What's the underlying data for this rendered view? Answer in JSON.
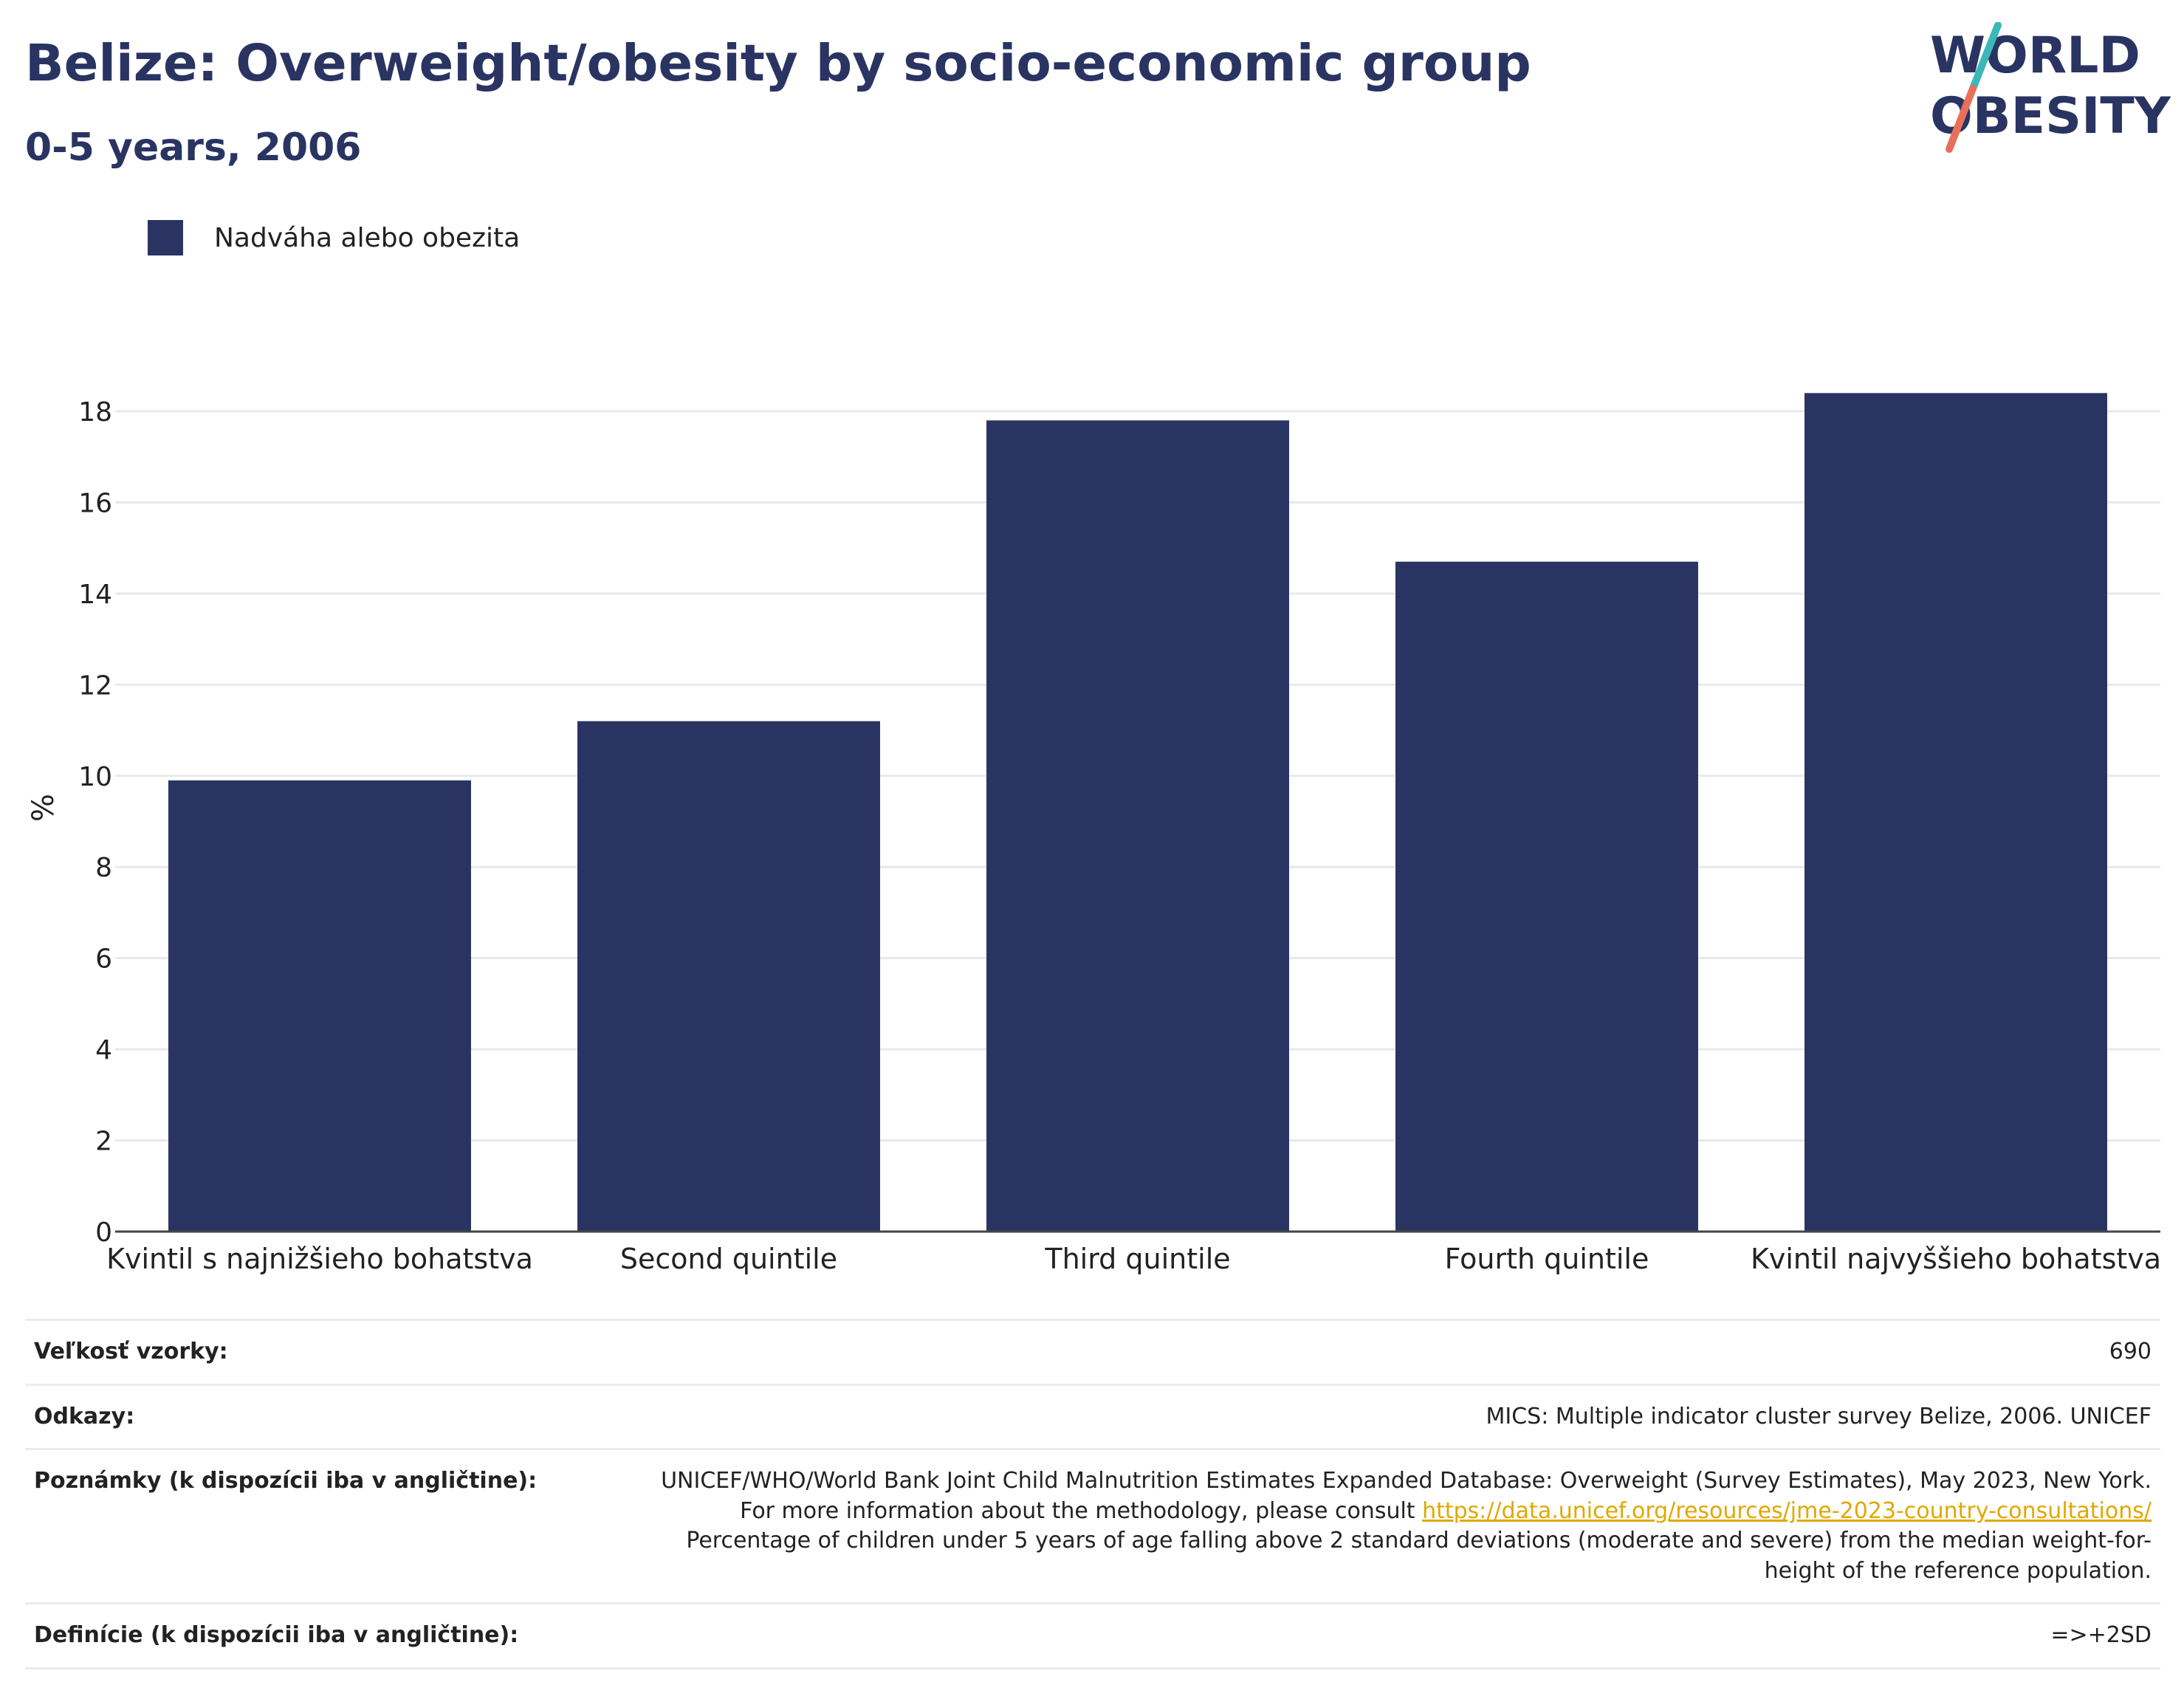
{
  "header": {
    "title": "Belize: Overweight/obesity by socio-economic group",
    "subtitle": "0-5 years, 2006"
  },
  "logo": {
    "line1": "WORLD",
    "line2": "OBESITY"
  },
  "colors": {
    "bar": "#2a3462",
    "text": "#2a3462",
    "logo_teal": "#3bb7b8",
    "logo_coral": "#e8705a",
    "link": "#e0a800"
  },
  "chart_data": {
    "type": "bar",
    "categories": [
      "Kvintil s najnižšieho bohatstva",
      "Second quintile",
      "Third quintile",
      "Fourth quintile",
      "Kvintil najvyššieho bohatstva"
    ],
    "series": [
      {
        "name": "Nadváha alebo obezita",
        "values": [
          9.9,
          11.2,
          17.8,
          14.7,
          18.4
        ]
      }
    ],
    "ylabel": "%",
    "xlabel": "",
    "ylim": [
      0,
      18.6
    ],
    "yticks": [
      0,
      2,
      4,
      6,
      8,
      10,
      12,
      14,
      16,
      18
    ],
    "grid": true,
    "legend": "top-left"
  },
  "info": {
    "sample_label": "Veľkosť vzorky:",
    "sample_value": "690",
    "refs_label": "Odkazy:",
    "refs_value": "MICS: Multiple indicator cluster survey Belize, 2006. UNICEF",
    "notes_label": "Poznámky (k dispozícii iba v angličtine):",
    "notes_text1": "UNICEF/WHO/World Bank Joint Child Malnutrition Estimates Expanded Database: Overweight (Survey Estimates), May 2023, New York. For more information about the methodology, please consult ",
    "notes_link": "https://data.unicef.org/resources/jme-2023-country-consultations/",
    "notes_text2": "Percentage of children under 5 years of age falling above 2 standard deviations (moderate and severe) from the median weight-for-height of the reference population.",
    "defs_label": "Definície (k dispozícii iba v angličtine):",
    "defs_value": "=>+2SD"
  }
}
